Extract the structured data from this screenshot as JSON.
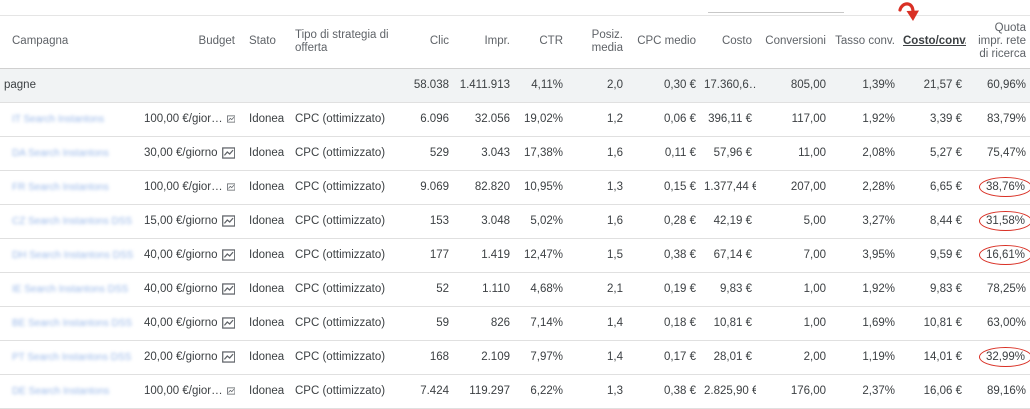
{
  "columns": [
    {
      "key": "campaign",
      "label": "Campagna"
    },
    {
      "key": "budget",
      "label": "Budget"
    },
    {
      "key": "status",
      "label": "Stato"
    },
    {
      "key": "bid_strategy",
      "label": "Tipo di strategia di offerta"
    },
    {
      "key": "clicks",
      "label": "Clic"
    },
    {
      "key": "impressions",
      "label": "Impr."
    },
    {
      "key": "ctr",
      "label": "CTR"
    },
    {
      "key": "avg_position",
      "label": "Posiz. media"
    },
    {
      "key": "avg_cpc",
      "label": "CPC medio"
    },
    {
      "key": "cost",
      "label": "Costo"
    },
    {
      "key": "conversions",
      "label": "Conversioni"
    },
    {
      "key": "conv_rate",
      "label": "Tasso conv."
    },
    {
      "key": "cost_per_conv",
      "label": "Costo/conv."
    },
    {
      "key": "search_impr_share",
      "label": "Quota impr. rete di ricerca"
    }
  ],
  "total_row": {
    "label": "pagne",
    "clicks": "58.038",
    "impressions": "1.411.913",
    "ctr": "4,11%",
    "avg_position": "2,0",
    "avg_cpc": "0,30 €",
    "cost": "17.360,6…",
    "conversions": "805,00",
    "conv_rate": "1,39%",
    "cost_per_conv": "21,57 €",
    "search_impr_share": "60,96%"
  },
  "rows": [
    {
      "campaign": "IT Search Instantons",
      "budget": "100,00 €/gior…",
      "status": "Idonea",
      "bid_strategy": "CPC (ottimizzato)",
      "clicks": "6.096",
      "impressions": "32.056",
      "ctr": "19,02%",
      "avg_position": "1,2",
      "avg_cpc": "0,06 €",
      "cost": "396,11 €",
      "conversions": "117,00",
      "conv_rate": "1,92%",
      "cost_per_conv": "3,39 €",
      "search_impr_share": "83,79%",
      "highlighted": false
    },
    {
      "campaign": "DA Search Instantons",
      "budget": "30,00 €/giorno",
      "status": "Idonea",
      "bid_strategy": "CPC (ottimizzato)",
      "clicks": "529",
      "impressions": "3.043",
      "ctr": "17,38%",
      "avg_position": "1,6",
      "avg_cpc": "0,11 €",
      "cost": "57,96 €",
      "conversions": "11,00",
      "conv_rate": "2,08%",
      "cost_per_conv": "5,27 €",
      "search_impr_share": "75,47%",
      "highlighted": false
    },
    {
      "campaign": "FR Search Instantons",
      "budget": "100,00 €/gior…",
      "status": "Idonea",
      "bid_strategy": "CPC (ottimizzato)",
      "clicks": "9.069",
      "impressions": "82.820",
      "ctr": "10,95%",
      "avg_position": "1,3",
      "avg_cpc": "0,15 €",
      "cost": "1.377,44 €",
      "conversions": "207,00",
      "conv_rate": "2,28%",
      "cost_per_conv": "6,65 €",
      "search_impr_share": "38,76%",
      "highlighted": true
    },
    {
      "campaign": "CZ Search Instantons DSS",
      "budget": "15,00 €/giorno",
      "status": "Idonea",
      "bid_strategy": "CPC (ottimizzato)",
      "clicks": "153",
      "impressions": "3.048",
      "ctr": "5,02%",
      "avg_position": "1,6",
      "avg_cpc": "0,28 €",
      "cost": "42,19 €",
      "conversions": "5,00",
      "conv_rate": "3,27%",
      "cost_per_conv": "8,44 €",
      "search_impr_share": "31,58%",
      "highlighted": true
    },
    {
      "campaign": "DH Search Instantons DSS",
      "budget": "40,00 €/giorno",
      "status": "Idonea",
      "bid_strategy": "CPC (ottimizzato)",
      "clicks": "177",
      "impressions": "1.419",
      "ctr": "12,47%",
      "avg_position": "1,5",
      "avg_cpc": "0,38 €",
      "cost": "67,14 €",
      "conversions": "7,00",
      "conv_rate": "3,95%",
      "cost_per_conv": "9,59 €",
      "search_impr_share": "16,61%",
      "highlighted": true
    },
    {
      "campaign": "IE Search Instantons DSS",
      "budget": "40,00 €/giorno",
      "status": "Idonea",
      "bid_strategy": "CPC (ottimizzato)",
      "clicks": "52",
      "impressions": "1.110",
      "ctr": "4,68%",
      "avg_position": "2,1",
      "avg_cpc": "0,19 €",
      "cost": "9,83 €",
      "conversions": "1,00",
      "conv_rate": "1,92%",
      "cost_per_conv": "9,83 €",
      "search_impr_share": "78,25%",
      "highlighted": false
    },
    {
      "campaign": "BE Search Instantons DSS",
      "budget": "40,00 €/giorno",
      "status": "Idonea",
      "bid_strategy": "CPC (ottimizzato)",
      "clicks": "59",
      "impressions": "826",
      "ctr": "7,14%",
      "avg_position": "1,4",
      "avg_cpc": "0,18 €",
      "cost": "10,81 €",
      "conversions": "1,00",
      "conv_rate": "1,69%",
      "cost_per_conv": "10,81 €",
      "search_impr_share": "63,00%",
      "highlighted": false
    },
    {
      "campaign": "PT Search Instantons DSS",
      "budget": "20,00 €/giorno",
      "status": "Idonea",
      "bid_strategy": "CPC (ottimizzato)",
      "clicks": "168",
      "impressions": "2.109",
      "ctr": "7,97%",
      "avg_position": "1,4",
      "avg_cpc": "0,17 €",
      "cost": "28,01 €",
      "conversions": "2,00",
      "conv_rate": "1,19%",
      "cost_per_conv": "14,01 €",
      "search_impr_share": "32,99%",
      "highlighted": true
    },
    {
      "campaign": "DE Search Instantons",
      "budget": "100,00 €/gior…",
      "status": "Idonea",
      "bid_strategy": "CPC (ottimizzato)",
      "clicks": "7.424",
      "impressions": "119.297",
      "ctr": "6,22%",
      "avg_position": "1,3",
      "avg_cpc": "0,38 €",
      "cost": "2.825,90 €",
      "conversions": "176,00",
      "conv_rate": "2,37%",
      "cost_per_conv": "16,06 €",
      "search_impr_share": "89,16%",
      "highlighted": false
    }
  ],
  "icons": {
    "trend": "trend-chart-icon",
    "annotation": "red-curved-arrow-icon"
  },
  "colors": {
    "annotation": "#d93025",
    "link": "#9bb9e9",
    "total_row_bg": "#f1f3f4"
  }
}
